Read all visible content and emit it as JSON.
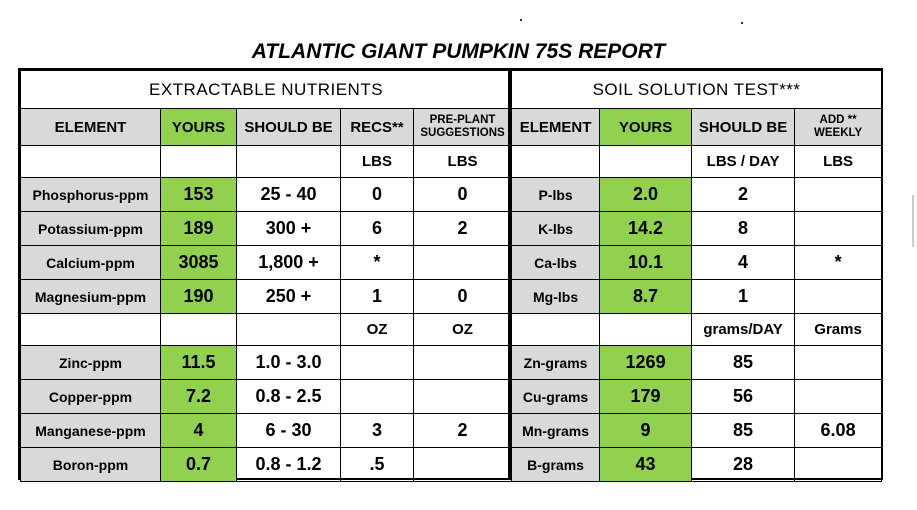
{
  "title": "ATLANTIC GIANT PUMPKIN 75S REPORT",
  "sections": {
    "left": "EXTRACTABLE NUTRIENTS",
    "right": "SOIL SOLUTION TEST***"
  },
  "headers": {
    "left": [
      "ELEMENT",
      "YOURS",
      "SHOULD BE",
      "RECS**",
      "PRE-PLANT",
      "SUGGESTIONS"
    ],
    "right": [
      "ELEMENT",
      "YOURS",
      "SHOULD BE",
      "ADD **",
      "WEEKLY"
    ]
  },
  "units_row_1": {
    "recs": "LBS",
    "preplant": "LBS",
    "should_be": "LBS / DAY",
    "add": "LBS"
  },
  "units_row_2": {
    "recs": "OZ",
    "preplant": "OZ",
    "should_be": "grams/DAY",
    "add": "Grams"
  },
  "rows_major": [
    {
      "element": "Phosphorus-ppm",
      "yours": "153",
      "should_be": "25 - 40",
      "recs": "0",
      "preplant": "0",
      "s_element": "P-lbs",
      "s_yours": "2.0",
      "s_should_be": "2",
      "s_add": ""
    },
    {
      "element": "Potassium-ppm",
      "yours": "189",
      "should_be": "300 +",
      "recs": "6",
      "preplant": "2",
      "s_element": "K-lbs",
      "s_yours": "14.2",
      "s_should_be": "8",
      "s_add": ""
    },
    {
      "element": "Calcium-ppm",
      "yours": "3085",
      "should_be": "1,800 +",
      "recs": "*",
      "preplant": "",
      "s_element": "Ca-lbs",
      "s_yours": "10.1",
      "s_should_be": "4",
      "s_add": "*"
    },
    {
      "element": "Magnesium-ppm",
      "yours": "190",
      "should_be": "250 +",
      "recs": "1",
      "preplant": "0",
      "s_element": "Mg-lbs",
      "s_yours": "8.7",
      "s_should_be": "1",
      "s_add": ""
    }
  ],
  "rows_minor": [
    {
      "element": "Zinc-ppm",
      "yours": "11.5",
      "should_be": "1.0 - 3.0",
      "recs": "",
      "preplant": "",
      "s_element": "Zn-grams",
      "s_yours": "1269",
      "s_should_be": "85",
      "s_add": ""
    },
    {
      "element": "Copper-ppm",
      "yours": "7.2",
      "should_be": "0.8 - 2.5",
      "recs": "",
      "preplant": "",
      "s_element": "Cu-grams",
      "s_yours": "179",
      "s_should_be": "56",
      "s_add": ""
    },
    {
      "element": "Manganese-ppm",
      "yours": "4",
      "should_be": "6 - 30",
      "recs": "3",
      "preplant": "2",
      "s_element": "Mn-grams",
      "s_yours": "9",
      "s_should_be": "85",
      "s_add": "6.08"
    },
    {
      "element": "Boron-ppm",
      "yours": "0.7",
      "should_be": "0.8 - 1.2",
      "recs": ".5",
      "preplant": "",
      "s_element": "B-grams",
      "s_yours": "43",
      "s_should_be": "28",
      "s_add": ""
    }
  ]
}
